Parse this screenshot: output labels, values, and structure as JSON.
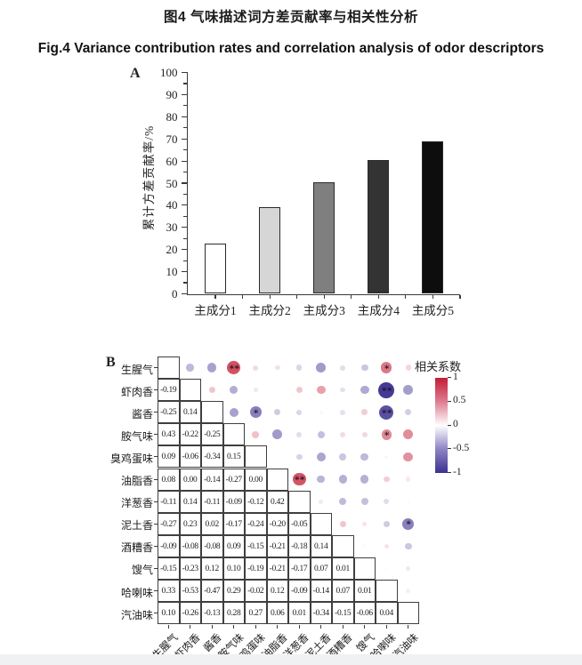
{
  "figure": {
    "title_cn": "图4 气味描述词方差贡献率与相关性分析",
    "title_en": "Fig.4 Variance contribution rates and correlation analysis of odor descriptors"
  },
  "panels": {
    "a": "A",
    "b": "B"
  },
  "chart_data": [
    {
      "type": "bar",
      "panel": "A",
      "title": "",
      "categories": [
        "主成分1",
        "主成分2",
        "主成分3",
        "主成分4",
        "主成分5"
      ],
      "values": [
        22.5,
        39,
        50.5,
        60.5,
        69
      ],
      "xlabel": "",
      "ylabel": "累计方差贡献率/%",
      "ylim": [
        0,
        100
      ],
      "ytick_step": 10,
      "ytick_minor_step": 5,
      "grid": false,
      "bar_colors": [
        "#ffffff",
        "#d6d6d6",
        "#7f7f7f",
        "#333333",
        "#0d0d0d"
      ],
      "bar_border_color": "#2b2b2b"
    },
    {
      "type": "heatmap",
      "panel": "B",
      "subtype": "correlation-matrix (lower triangle: coefficients, upper triangle: bubbles)",
      "labels": [
        "生腥气",
        "虾肉香",
        "酱香",
        "胺气味",
        "臭鸡蛋味",
        "油脂香",
        "洋葱香",
        "泥土香",
        "酒糟香",
        "馊气",
        "哈喇味",
        "汽油味"
      ],
      "lower_triangle": [
        [],
        [
          "-0.19"
        ],
        [
          "-0.25",
          "0.14"
        ],
        [
          "0.43",
          "-0.22",
          "-0.25"
        ],
        [
          "0.09",
          "-0.06",
          "-0.34",
          "0.15"
        ],
        [
          "0.08",
          "0.00",
          "-0.14",
          "-0.27",
          "0.00"
        ],
        [
          "-0.11",
          "0.14",
          "-0.11",
          "-0.09",
          "-0.12",
          "0.42"
        ],
        [
          "-0.27",
          "0.23",
          "0.02",
          "-0.17",
          "-0.24",
          "-0.20",
          "-0.05"
        ],
        [
          "-0.09",
          "-0.08",
          "-0.08",
          "0.09",
          "-0.15",
          "-0.21",
          "-0.18",
          "0.14"
        ],
        [
          "-0.15",
          "-0.23",
          "0.12",
          "0.10",
          "-0.19",
          "-0.21",
          "-0.17",
          "0.07",
          "0.01"
        ],
        [
          "0.33",
          "-0.53",
          "-0.47",
          "0.29",
          "-0.02",
          "0.12",
          "-0.09",
          "-0.14",
          "0.07",
          "0.01"
        ],
        [
          "0.10",
          "-0.26",
          "-0.13",
          "0.28",
          "0.27",
          "0.06",
          "0.01",
          "-0.34",
          "-0.15",
          "-0.06",
          "0.04"
        ]
      ],
      "bubble_significance": {
        "0-3": "**",
        "0-10": "*",
        "1-10": "**",
        "2-4": "*",
        "2-10": "**",
        "3-10": "*",
        "5-6": "**",
        "7-11": "*"
      },
      "legend": {
        "title": "相关系数",
        "ticks": [
          "1",
          "0.5",
          "0",
          "-0.5",
          "-1"
        ],
        "color_positive": "#c31e35",
        "color_negative": "#3b3191",
        "color_zero": "#ffffff"
      }
    }
  ]
}
